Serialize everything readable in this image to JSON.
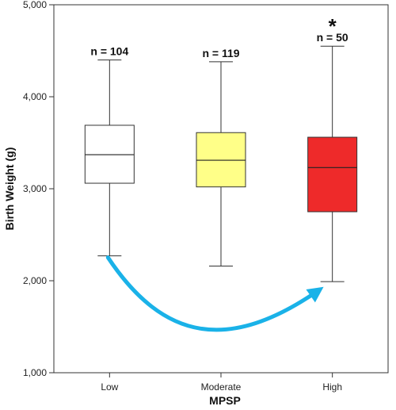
{
  "chart_data": {
    "type": "box",
    "xlabel": "MPSP",
    "ylabel": "Birth Weight (g)",
    "ylim": [
      1000,
      5000
    ],
    "yticks": [
      {
        "value": 1000,
        "label": "1,000"
      },
      {
        "value": 2000,
        "label": "2,000"
      },
      {
        "value": 3000,
        "label": "3,000"
      },
      {
        "value": 4000,
        "label": "4,000"
      },
      {
        "value": 5000,
        "label": "5,000"
      }
    ],
    "categories": [
      "Low",
      "Moderate",
      "High"
    ],
    "boxes": [
      {
        "category": "Low",
        "min": 2270,
        "q1": 3060,
        "median": 3370,
        "q3": 3690,
        "max": 4400,
        "fill": "#ffffff",
        "n_label": "n = 104",
        "significance": ""
      },
      {
        "category": "Moderate",
        "min": 2160,
        "q1": 3020,
        "median": 3310,
        "q3": 3610,
        "max": 4380,
        "fill": "#ffff88",
        "n_label": "n = 119",
        "significance": ""
      },
      {
        "category": "High",
        "min": 1990,
        "q1": 2750,
        "median": 3230,
        "q3": 3560,
        "max": 4550,
        "fill": "#ee2a2a",
        "n_label": "n = 50",
        "significance": "*"
      }
    ],
    "annotation": {
      "type": "curved-arrow",
      "from_category": "Low",
      "to_category": "High",
      "color": "#1ab2e8"
    },
    "grid": false
  }
}
